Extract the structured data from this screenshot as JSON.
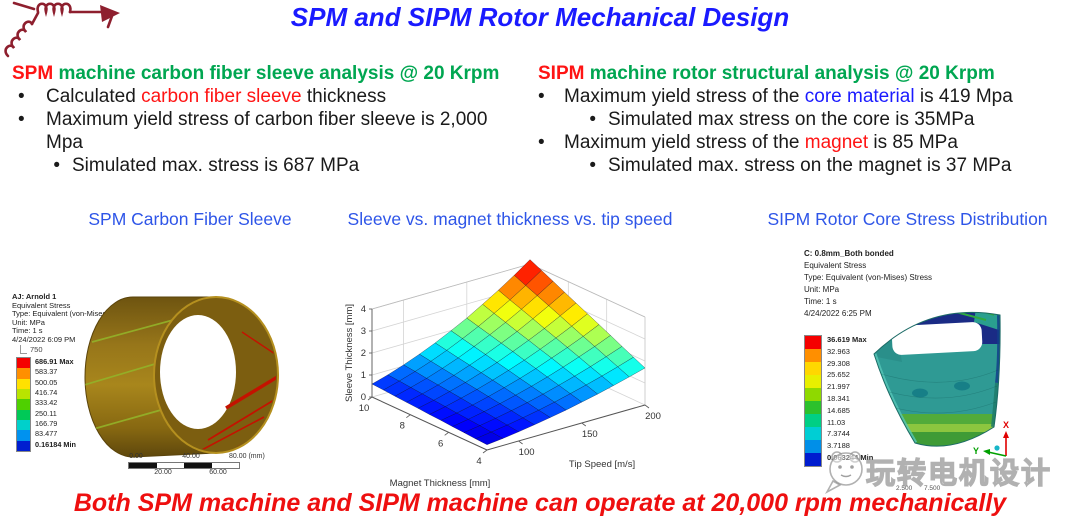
{
  "slide": {
    "title": "SPM and SIPM Rotor Mechanical Design",
    "footer": "Both SPM machine and SIPM machine can operate at 20,000 rpm mechanically",
    "watermark": "玩转电机设计",
    "bullet": "•"
  },
  "left_section": {
    "head_red": "SPM",
    "head_green": " machine carbon fiber sleeve analysis @ 20 Krpm",
    "b1_pre": "Calculated ",
    "b1_red": "carbon fiber sleeve",
    "b1_post": " thickness",
    "b2": "Maximum yield stress of carbon fiber sleeve is 2,000 Mpa",
    "sub1": "Simulated max. stress is 687 MPa"
  },
  "right_section": {
    "head_red": "SIPM",
    "head_green": " machine rotor structural analysis @ 20 Krpm",
    "b1_pre": "Maximum yield stress of the ",
    "b1_blue": "core material",
    "b1_post": " is 419 Mpa",
    "sub1": "Simulated max stress on the core is 35MPa",
    "b2_pre": "Maximum yield stress of the ",
    "b2_red": "magnet",
    "b2_post": " is 85 MPa",
    "sub2": "Simulated max. stress on the magnet is 37 MPa"
  },
  "captions": {
    "left": "SPM Carbon Fiber Sleeve",
    "middle": "Sleeve vs. magnet thickness vs. tip speed",
    "right": "SIPM Rotor Core Stress Distribution"
  },
  "sleeve_panel": {
    "meta": [
      "AJ: Arnold 1",
      "Equivalent Stress",
      "Type: Equivalent (von-Mises) Stress",
      "Unit: MPa",
      "Time: 1 s",
      "4/24/2022 6:09 PM"
    ],
    "scale_cap": "750",
    "legend": [
      "686.91 Max",
      "583.37",
      "500.05",
      "416.74",
      "333.42",
      "250.11",
      "166.79",
      "83.477",
      "0.16184 Min"
    ],
    "band_colors": [
      "#f50000",
      "#ff8f00",
      "#ffe100",
      "#b9e400",
      "#4fd000",
      "#00c957",
      "#00d0cb",
      "#0092ef",
      "#001ed0"
    ],
    "ruler_top": [
      "0.00",
      "40.00",
      "80.00 (mm)"
    ],
    "ruler_bottom": [
      "20.00",
      "60.00"
    ]
  },
  "rotor_panel": {
    "meta": [
      "C: 0.8mm_Both  bonded",
      "Equivalent Stress",
      "Type: Equivalent (von-Mises) Stress",
      "Unit: MPa",
      "Time: 1 s",
      "4/24/2022 6:25 PM"
    ],
    "legend": [
      "36.619 Max",
      "32.963",
      "29.308",
      "25.652",
      "21.997",
      "18.341",
      "14.685",
      "11.03",
      "7.3744",
      "3.7188",
      "0.063244 Min"
    ],
    "band_colors": [
      "#f50000",
      "#ff8f00",
      "#ffd700",
      "#e8ef00",
      "#8fd900",
      "#2cc12c",
      "#00cf85",
      "#00ced4",
      "#008fe8",
      "#001ccf"
    ],
    "ruler_labels": [
      "2.500",
      "7.500"
    ],
    "axis_x": "X",
    "axis_y": "Y"
  },
  "chart_data": {
    "type": "surface",
    "title": "Sleeve vs. magnet thickness vs. tip speed",
    "xlabel": "Magnet Thickness [mm]",
    "ylabel": "Tip Speed [m/s]",
    "zlabel": "Sleeve Thickness [mm]",
    "x_ticks": [
      10,
      8,
      6,
      4
    ],
    "y_ticks": [
      100,
      150,
      200
    ],
    "z_ticks": [
      0,
      1,
      2,
      3,
      4
    ],
    "x_range": [
      4,
      10
    ],
    "y_range": [
      75,
      200
    ],
    "z_range": [
      0,
      4.2
    ],
    "magnet_thickness": [
      4,
      4.6,
      5.2,
      5.8,
      6.4,
      7,
      7.6,
      8.2,
      8.8,
      9.4,
      10
    ],
    "tip_speed": [
      75,
      87.5,
      100,
      112.5,
      125,
      137.5,
      150,
      162.5,
      175,
      187.5,
      200
    ],
    "sleeve_thickness_grid": [
      [
        0.24,
        0.32,
        0.42,
        0.53,
        0.66,
        0.79,
        0.95,
        1.11,
        1.29,
        1.48,
        1.68
      ],
      [
        0.27,
        0.37,
        0.48,
        0.61,
        0.75,
        0.91,
        1.09,
        1.28,
        1.48,
        1.7,
        1.93
      ],
      [
        0.31,
        0.42,
        0.55,
        0.69,
        0.85,
        1.03,
        1.23,
        1.44,
        1.67,
        1.92,
        2.18
      ],
      [
        0.34,
        0.47,
        0.61,
        0.77,
        0.95,
        1.15,
        1.37,
        1.61,
        1.87,
        2.14,
        2.44
      ],
      [
        0.38,
        0.51,
        0.67,
        0.85,
        1.05,
        1.27,
        1.51,
        1.78,
        2.06,
        2.36,
        2.69
      ],
      [
        0.41,
        0.56,
        0.74,
        0.93,
        1.15,
        1.39,
        1.65,
        1.94,
        2.25,
        2.58,
        2.94
      ],
      [
        0.45,
        0.61,
        0.8,
        1.01,
        1.25,
        1.51,
        1.8,
        2.11,
        2.44,
        2.81,
        3.19
      ],
      [
        0.48,
        0.66,
        0.86,
        1.09,
        1.35,
        1.63,
        1.94,
        2.27,
        2.64,
        3.03,
        3.44
      ],
      [
        0.52,
        0.71,
        0.92,
        1.17,
        1.44,
        1.75,
        2.08,
        2.44,
        2.83,
        3.25,
        3.7
      ],
      [
        0.56,
        0.76,
        0.99,
        1.25,
        1.54,
        1.87,
        2.22,
        2.61,
        3.02,
        3.47,
        3.95
      ],
      [
        0.59,
        0.8,
        1.05,
        1.33,
        1.64,
        1.99,
        2.36,
        2.78,
        3.22,
        3.69,
        4.2
      ]
    ]
  },
  "colors": {
    "title_blue": "#1a1aff",
    "caption_blue": "#2e55e8",
    "header_green": "#00a651",
    "accent_red": "#ff1414",
    "footer_red": "#ee0f0f",
    "link_blue": "#1a1aff",
    "icon_maroon": "#8e1f2e",
    "sleeve_gold": "#9a7a16",
    "rotor_teal": "#2f9a94"
  }
}
